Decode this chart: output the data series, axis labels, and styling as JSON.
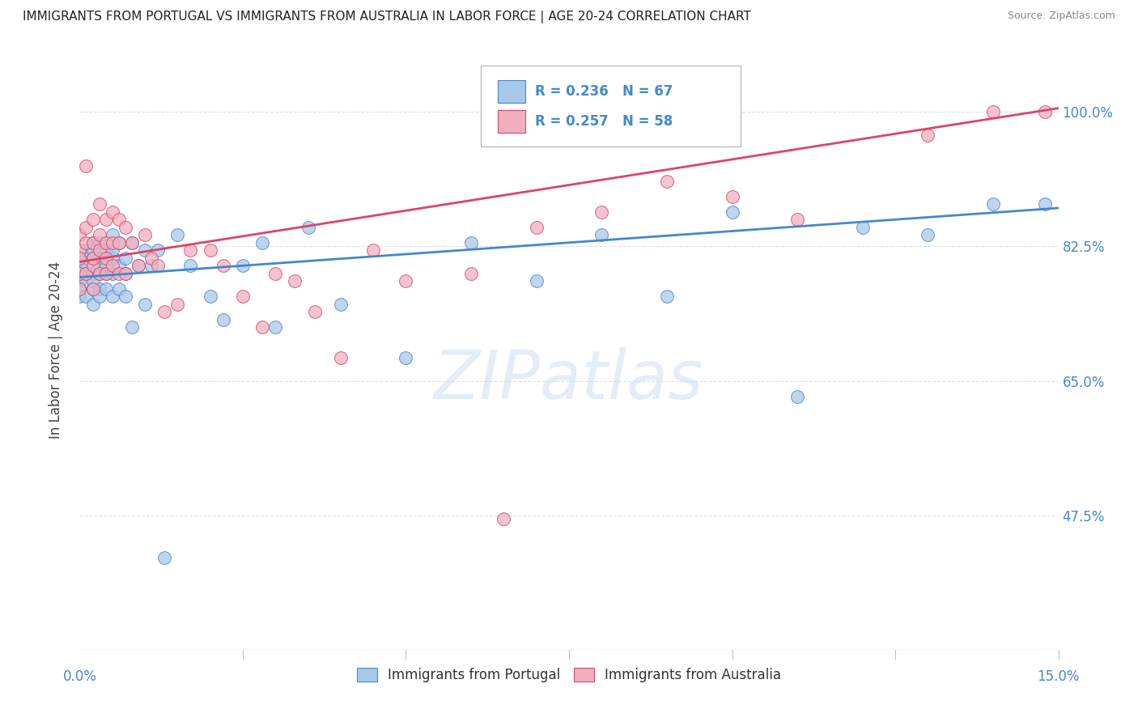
{
  "title": "IMMIGRANTS FROM PORTUGAL VS IMMIGRANTS FROM AUSTRALIA IN LABOR FORCE | AGE 20-24 CORRELATION CHART",
  "source": "Source: ZipAtlas.com",
  "ylabel": "In Labor Force | Age 20-24",
  "right_ytick_vals": [
    0.475,
    0.65,
    0.825,
    1.0
  ],
  "right_ytick_labels": [
    "47.5%",
    "65.0%",
    "82.5%",
    "100.0%"
  ],
  "watermark": "ZIPatlas",
  "scatter_portugal_color": "#a8c8e8",
  "scatter_australia_color": "#f0b0c0",
  "line_portugal_color": "#4488cc",
  "line_australia_color": "#dd4466",
  "legend_portugal_R": 0.236,
  "legend_portugal_N": 67,
  "legend_australia_R": 0.257,
  "legend_australia_N": 58,
  "xlim": [
    0.0,
    0.15
  ],
  "ylim": [
    0.3,
    1.08
  ],
  "background_color": "#ffffff",
  "grid_color": "#dedee8",
  "portugal_x": [
    0.0,
    0.0,
    0.0,
    0.0,
    0.0,
    0.001,
    0.001,
    0.001,
    0.001,
    0.001,
    0.001,
    0.002,
    0.002,
    0.002,
    0.002,
    0.002,
    0.002,
    0.002,
    0.003,
    0.003,
    0.003,
    0.003,
    0.003,
    0.003,
    0.004,
    0.004,
    0.004,
    0.004,
    0.005,
    0.005,
    0.005,
    0.005,
    0.005,
    0.006,
    0.006,
    0.006,
    0.007,
    0.007,
    0.007,
    0.008,
    0.008,
    0.009,
    0.01,
    0.01,
    0.011,
    0.012,
    0.013,
    0.015,
    0.017,
    0.02,
    0.022,
    0.025,
    0.028,
    0.03,
    0.035,
    0.04,
    0.05,
    0.06,
    0.07,
    0.08,
    0.09,
    0.1,
    0.11,
    0.12,
    0.13,
    0.14,
    0.148
  ],
  "portugal_y": [
    0.78,
    0.8,
    0.76,
    0.79,
    0.77,
    0.81,
    0.79,
    0.76,
    0.82,
    0.78,
    0.8,
    0.83,
    0.79,
    0.77,
    0.81,
    0.75,
    0.82,
    0.78,
    0.8,
    0.77,
    0.83,
    0.79,
    0.76,
    0.81,
    0.82,
    0.79,
    0.77,
    0.8,
    0.84,
    0.81,
    0.79,
    0.76,
    0.82,
    0.8,
    0.77,
    0.83,
    0.81,
    0.79,
    0.76,
    0.83,
    0.72,
    0.8,
    0.82,
    0.75,
    0.8,
    0.82,
    0.42,
    0.84,
    0.8,
    0.76,
    0.73,
    0.8,
    0.83,
    0.72,
    0.85,
    0.75,
    0.68,
    0.83,
    0.78,
    0.84,
    0.76,
    0.87,
    0.63,
    0.85,
    0.84,
    0.88,
    0.88
  ],
  "australia_x": [
    0.0,
    0.0,
    0.0,
    0.0,
    0.0,
    0.001,
    0.001,
    0.001,
    0.001,
    0.002,
    0.002,
    0.002,
    0.002,
    0.002,
    0.003,
    0.003,
    0.003,
    0.003,
    0.004,
    0.004,
    0.004,
    0.004,
    0.005,
    0.005,
    0.005,
    0.006,
    0.006,
    0.006,
    0.007,
    0.007,
    0.008,
    0.009,
    0.01,
    0.011,
    0.012,
    0.013,
    0.015,
    0.017,
    0.02,
    0.022,
    0.025,
    0.028,
    0.03,
    0.033,
    0.036,
    0.04,
    0.045,
    0.05,
    0.06,
    0.065,
    0.07,
    0.08,
    0.09,
    0.1,
    0.11,
    0.13,
    0.14,
    0.148
  ],
  "australia_y": [
    0.82,
    0.79,
    0.84,
    0.77,
    0.81,
    0.93,
    0.83,
    0.79,
    0.85,
    0.86,
    0.8,
    0.83,
    0.77,
    0.81,
    0.88,
    0.84,
    0.79,
    0.82,
    0.86,
    0.81,
    0.79,
    0.83,
    0.87,
    0.83,
    0.8,
    0.86,
    0.79,
    0.83,
    0.85,
    0.79,
    0.83,
    0.8,
    0.84,
    0.81,
    0.8,
    0.74,
    0.75,
    0.82,
    0.82,
    0.8,
    0.76,
    0.72,
    0.79,
    0.78,
    0.74,
    0.68,
    0.82,
    0.78,
    0.79,
    0.47,
    0.85,
    0.87,
    0.91,
    0.89,
    0.86,
    0.97,
    1.0,
    1.0
  ],
  "line_p_x0": 0.0,
  "line_p_y0": 0.785,
  "line_p_x1": 0.15,
  "line_p_y1": 0.875,
  "line_a_x0": 0.0,
  "line_a_y0": 0.805,
  "line_a_x1": 0.15,
  "line_a_y1": 1.005
}
